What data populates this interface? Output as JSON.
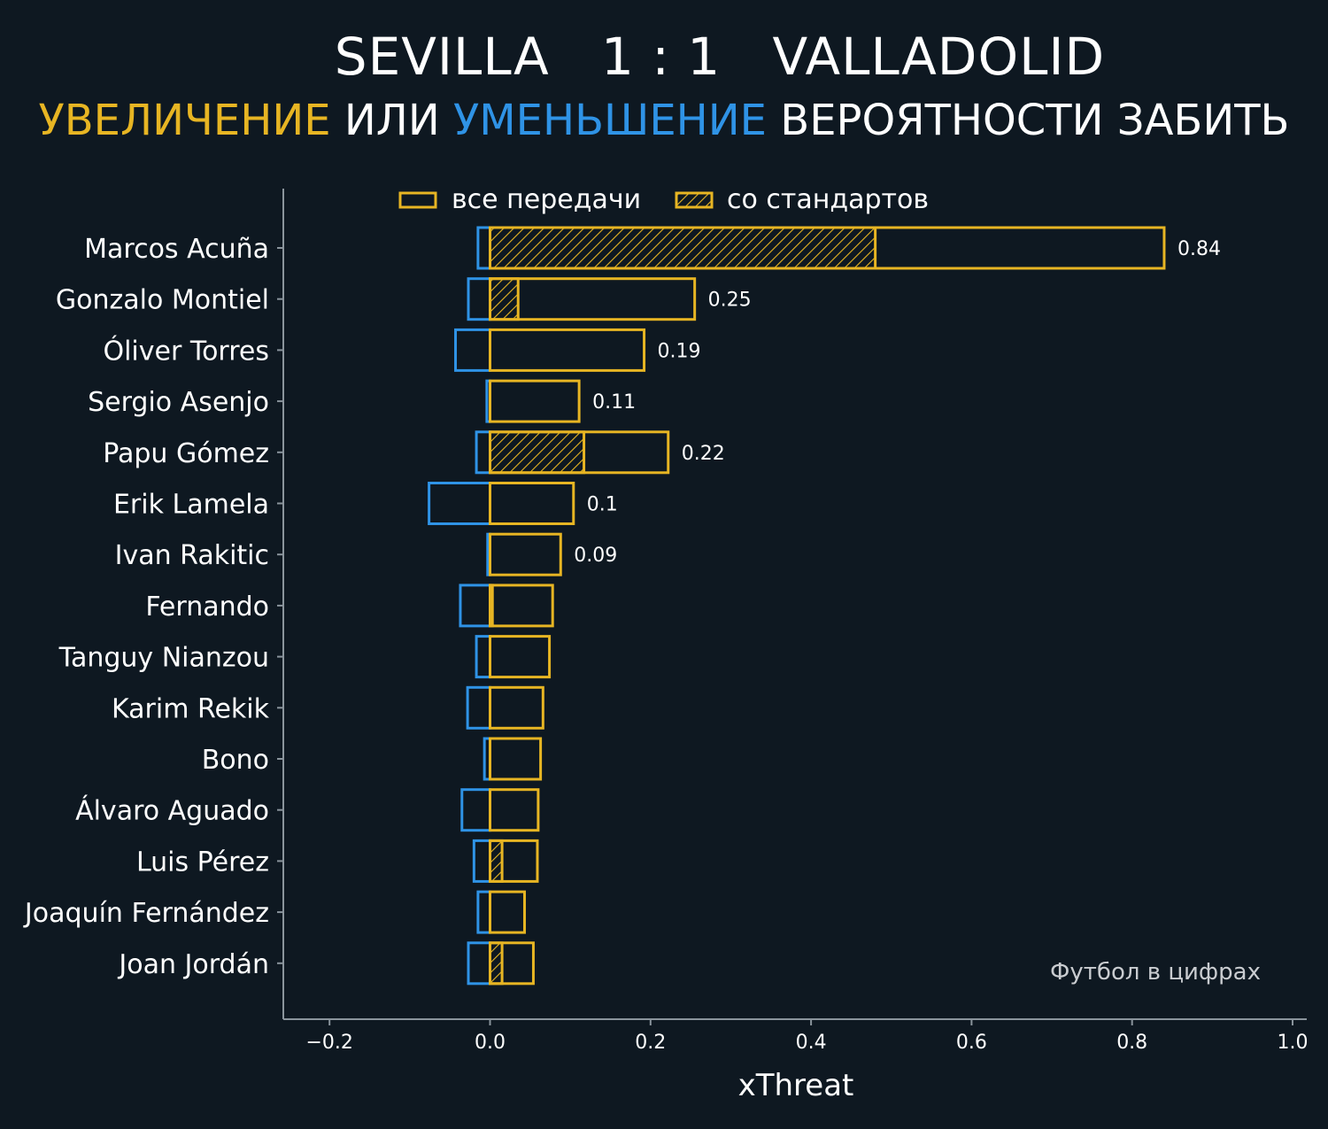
{
  "header": {
    "title": "SEVILLA   1 : 1   VALLADOLID",
    "subtitle": {
      "part1": "УВЕЛИЧЕНИЕ",
      "part2": " ИЛИ ",
      "part3": "УМЕНЬШЕНИЕ",
      "part4": " ВЕРОЯТНОСТИ ЗАБИТЬ"
    }
  },
  "credit": "Футбол в цифрах",
  "colors": {
    "background": "#0e1821",
    "increase": "#e7b523",
    "decrease": "#2f93e6",
    "axis": "#8a949c"
  },
  "chart_data": {
    "type": "bar",
    "orientation": "horizontal",
    "xlabel": "xThreat",
    "xlim": [
      -0.26,
      1.02
    ],
    "xticks": [
      -0.2,
      0.0,
      0.2,
      0.4,
      0.6,
      0.8,
      1.0
    ],
    "xtick_labels": [
      "−0.2",
      "0.0",
      "0.2",
      "0.4",
      "0.6",
      "0.8",
      "1.0"
    ],
    "legend": {
      "placement": "top",
      "entries": [
        {
          "label": "все передачи",
          "style": "outline"
        },
        {
          "label": "со стандартов",
          "style": "hatched"
        }
      ]
    },
    "categories": [
      "Marcos Acuña",
      "Gonzalo Montiel",
      "Óliver Torres",
      "Sergio Asenjo",
      "Papu Gómez",
      "Erik Lamela",
      "Ivan Rakitic",
      "Fernando",
      "Tanguy Nianzou",
      "Karim Rekik",
      "Bono",
      "Álvaro Aguado",
      "Luis Pérez",
      "Joaquín Fernández",
      "Joan Jordán"
    ],
    "series": [
      {
        "name": "все передачи",
        "values": [
          0.84,
          0.255,
          0.192,
          0.111,
          0.222,
          0.104,
          0.088,
          0.078,
          0.074,
          0.066,
          0.063,
          0.06,
          0.059,
          0.043,
          0.054
        ]
      },
      {
        "name": "со стандартов",
        "values": [
          0.48,
          0.035,
          0,
          0,
          0.117,
          0,
          0,
          0.003,
          0,
          0,
          0,
          0,
          0.015,
          0,
          0.015
        ]
      },
      {
        "values": [
          -0.015,
          -0.027,
          -0.043,
          -0.004,
          -0.017,
          -0.076,
          -0.003,
          -0.037,
          -0.017,
          -0.028,
          -0.007,
          -0.035,
          -0.02,
          -0.015,
          -0.027
        ]
      }
    ],
    "value_labels": [
      "0.84",
      "0.25",
      "0.19",
      "0.11",
      "0.22",
      "0.1",
      "0.09",
      "",
      "",
      "",
      "",
      "",
      "",
      "",
      ""
    ]
  }
}
